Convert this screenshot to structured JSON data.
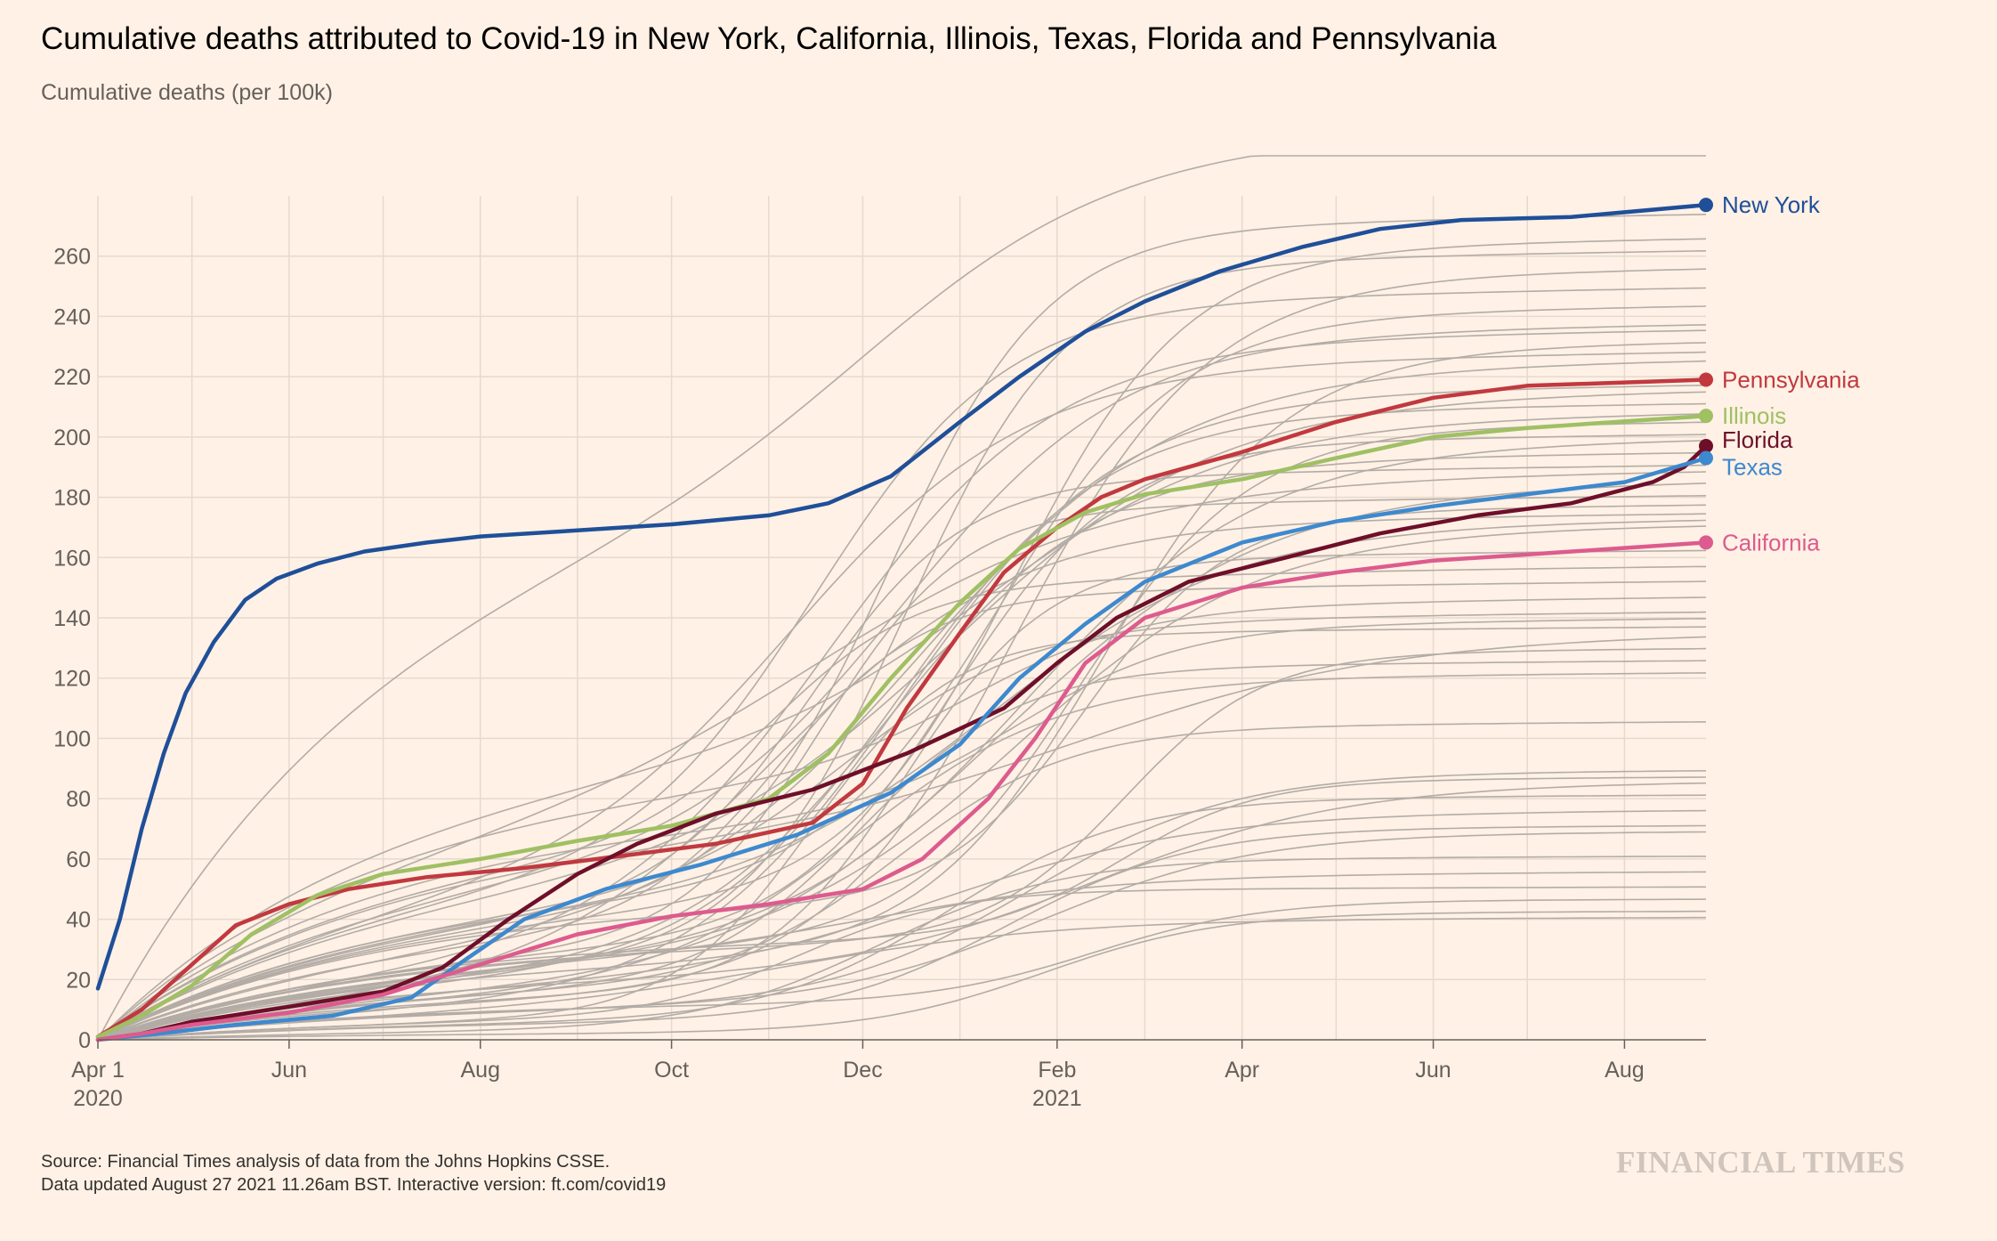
{
  "title": "Cumulative deaths attributed to Covid-19 in New York, California, Illinois, Texas, Florida and Pennsylvania",
  "subtitle": "Cumulative deaths (per 100k)",
  "footer": {
    "source": "Source: Financial Times analysis of data from the Johns Hopkins CSSE.",
    "updated": "Data updated August 27 2021 11.26am BST. Interactive version: ft.com/covid19"
  },
  "brand": "FINANCIAL TIMES",
  "colors": {
    "background": "#fff1e5",
    "grid": "#e6d9ce",
    "other_states": "#b3aca6",
    "new_york": "#1f4f99",
    "pennsylvania": "#c1393f",
    "illinois": "#9fc063",
    "florida": "#6e0f2a",
    "texas": "#3d89cf",
    "california": "#dd5b8e"
  },
  "chart_data": {
    "type": "line",
    "ylabel": "Cumulative deaths (per 100k)",
    "ylim": [
      0,
      280
    ],
    "yticks": [
      0,
      20,
      40,
      60,
      80,
      100,
      120,
      140,
      160,
      180,
      200,
      220,
      240,
      260
    ],
    "xlim": [
      "2020-04-01",
      "2021-08-27"
    ],
    "xticks": [
      {
        "date": "2020-04-01",
        "label": "Apr 1",
        "sublabel": "2020"
      },
      {
        "date": "2020-06-01",
        "label": "Jun",
        "sublabel": ""
      },
      {
        "date": "2020-08-01",
        "label": "Aug",
        "sublabel": ""
      },
      {
        "date": "2020-10-01",
        "label": "Oct",
        "sublabel": ""
      },
      {
        "date": "2020-12-01",
        "label": "Dec",
        "sublabel": ""
      },
      {
        "date": "2021-02-01",
        "label": "Feb",
        "sublabel": "2021"
      },
      {
        "date": "2021-04-01",
        "label": "Apr",
        "sublabel": ""
      },
      {
        "date": "2021-06-01",
        "label": "Jun",
        "sublabel": ""
      },
      {
        "date": "2021-08-01",
        "label": "Aug",
        "sublabel": ""
      }
    ],
    "grid": true,
    "series": [
      {
        "name": "New York",
        "key": "new_york",
        "points": [
          [
            "2020-04-01",
            17
          ],
          [
            "2020-04-08",
            40
          ],
          [
            "2020-04-15",
            70
          ],
          [
            "2020-04-22",
            95
          ],
          [
            "2020-04-29",
            115
          ],
          [
            "2020-05-08",
            132
          ],
          [
            "2020-05-18",
            146
          ],
          [
            "2020-05-28",
            153
          ],
          [
            "2020-06-10",
            158
          ],
          [
            "2020-06-25",
            162
          ],
          [
            "2020-07-15",
            165
          ],
          [
            "2020-08-01",
            167
          ],
          [
            "2020-09-01",
            169
          ],
          [
            "2020-10-01",
            171
          ],
          [
            "2020-11-01",
            174
          ],
          [
            "2020-11-20",
            178
          ],
          [
            "2020-12-10",
            187
          ],
          [
            "2021-01-01",
            205
          ],
          [
            "2021-01-20",
            220
          ],
          [
            "2021-02-10",
            235
          ],
          [
            "2021-03-01",
            245
          ],
          [
            "2021-03-25",
            255
          ],
          [
            "2021-04-20",
            263
          ],
          [
            "2021-05-15",
            269
          ],
          [
            "2021-06-10",
            272
          ],
          [
            "2021-07-15",
            273
          ],
          [
            "2021-08-27",
            277
          ]
        ]
      },
      {
        "name": "Pennsylvania",
        "key": "pennsylvania",
        "points": [
          [
            "2020-04-01",
            1
          ],
          [
            "2020-04-15",
            10
          ],
          [
            "2020-05-01",
            25
          ],
          [
            "2020-05-15",
            38
          ],
          [
            "2020-06-01",
            45
          ],
          [
            "2020-06-20",
            50
          ],
          [
            "2020-07-15",
            54
          ],
          [
            "2020-08-15",
            57
          ],
          [
            "2020-09-15",
            61
          ],
          [
            "2020-10-15",
            65
          ],
          [
            "2020-11-15",
            72
          ],
          [
            "2020-12-01",
            85
          ],
          [
            "2020-12-15",
            110
          ],
          [
            "2021-01-01",
            135
          ],
          [
            "2021-01-15",
            155
          ],
          [
            "2021-02-01",
            170
          ],
          [
            "2021-02-15",
            180
          ],
          [
            "2021-03-01",
            186
          ],
          [
            "2021-04-01",
            195
          ],
          [
            "2021-05-01",
            205
          ],
          [
            "2021-06-01",
            213
          ],
          [
            "2021-07-01",
            217
          ],
          [
            "2021-08-27",
            219
          ]
        ]
      },
      {
        "name": "Illinois",
        "key": "illinois",
        "points": [
          [
            "2020-04-01",
            1
          ],
          [
            "2020-04-15",
            8
          ],
          [
            "2020-05-01",
            18
          ],
          [
            "2020-05-20",
            35
          ],
          [
            "2020-06-10",
            48
          ],
          [
            "2020-07-01",
            55
          ],
          [
            "2020-08-01",
            60
          ],
          [
            "2020-09-01",
            66
          ],
          [
            "2020-10-01",
            71
          ],
          [
            "2020-11-01",
            80
          ],
          [
            "2020-11-20",
            95
          ],
          [
            "2020-12-10",
            120
          ],
          [
            "2021-01-01",
            145
          ],
          [
            "2021-01-20",
            163
          ],
          [
            "2021-02-10",
            175
          ],
          [
            "2021-03-01",
            181
          ],
          [
            "2021-04-01",
            186
          ],
          [
            "2021-05-01",
            193
          ],
          [
            "2021-06-01",
            200
          ],
          [
            "2021-07-01",
            203
          ],
          [
            "2021-08-27",
            207
          ]
        ]
      },
      {
        "name": "Florida",
        "key": "florida",
        "points": [
          [
            "2020-04-01",
            0
          ],
          [
            "2020-04-15",
            2
          ],
          [
            "2020-05-01",
            6
          ],
          [
            "2020-06-01",
            11
          ],
          [
            "2020-07-01",
            16
          ],
          [
            "2020-07-20",
            24
          ],
          [
            "2020-08-10",
            40
          ],
          [
            "2020-09-01",
            55
          ],
          [
            "2020-09-20",
            65
          ],
          [
            "2020-10-15",
            75
          ],
          [
            "2020-11-15",
            83
          ],
          [
            "2020-12-15",
            95
          ],
          [
            "2021-01-15",
            110
          ],
          [
            "2021-02-01",
            125
          ],
          [
            "2021-02-20",
            140
          ],
          [
            "2021-03-15",
            152
          ],
          [
            "2021-04-15",
            160
          ],
          [
            "2021-05-15",
            168
          ],
          [
            "2021-06-15",
            174
          ],
          [
            "2021-07-15",
            178
          ],
          [
            "2021-08-10",
            185
          ],
          [
            "2021-08-20",
            190
          ],
          [
            "2021-08-27",
            197
          ]
        ]
      },
      {
        "name": "Texas",
        "key": "texas",
        "points": [
          [
            "2020-04-01",
            0
          ],
          [
            "2020-04-20",
            2
          ],
          [
            "2020-05-15",
            5
          ],
          [
            "2020-06-15",
            8
          ],
          [
            "2020-07-10",
            14
          ],
          [
            "2020-07-25",
            25
          ],
          [
            "2020-08-15",
            40
          ],
          [
            "2020-09-10",
            50
          ],
          [
            "2020-10-10",
            58
          ],
          [
            "2020-11-10",
            68
          ],
          [
            "2020-12-10",
            82
          ],
          [
            "2021-01-01",
            98
          ],
          [
            "2021-01-20",
            120
          ],
          [
            "2021-02-10",
            138
          ],
          [
            "2021-03-01",
            152
          ],
          [
            "2021-04-01",
            165
          ],
          [
            "2021-05-01",
            172
          ],
          [
            "2021-06-01",
            177
          ],
          [
            "2021-07-01",
            181
          ],
          [
            "2021-08-01",
            185
          ],
          [
            "2021-08-27",
            193
          ]
        ]
      },
      {
        "name": "California",
        "key": "california",
        "points": [
          [
            "2020-04-01",
            0
          ],
          [
            "2020-04-15",
            2
          ],
          [
            "2020-05-01",
            5
          ],
          [
            "2020-06-01",
            9
          ],
          [
            "2020-07-01",
            15
          ],
          [
            "2020-08-01",
            25
          ],
          [
            "2020-09-01",
            35
          ],
          [
            "2020-10-01",
            41
          ],
          [
            "2020-11-01",
            45
          ],
          [
            "2020-12-01",
            50
          ],
          [
            "2020-12-20",
            60
          ],
          [
            "2021-01-10",
            80
          ],
          [
            "2021-01-25",
            100
          ],
          [
            "2021-02-10",
            125
          ],
          [
            "2021-03-01",
            140
          ],
          [
            "2021-04-01",
            150
          ],
          [
            "2021-05-01",
            155
          ],
          [
            "2021-06-01",
            159
          ],
          [
            "2021-07-01",
            161
          ],
          [
            "2021-08-27",
            165
          ]
        ]
      }
    ]
  }
}
